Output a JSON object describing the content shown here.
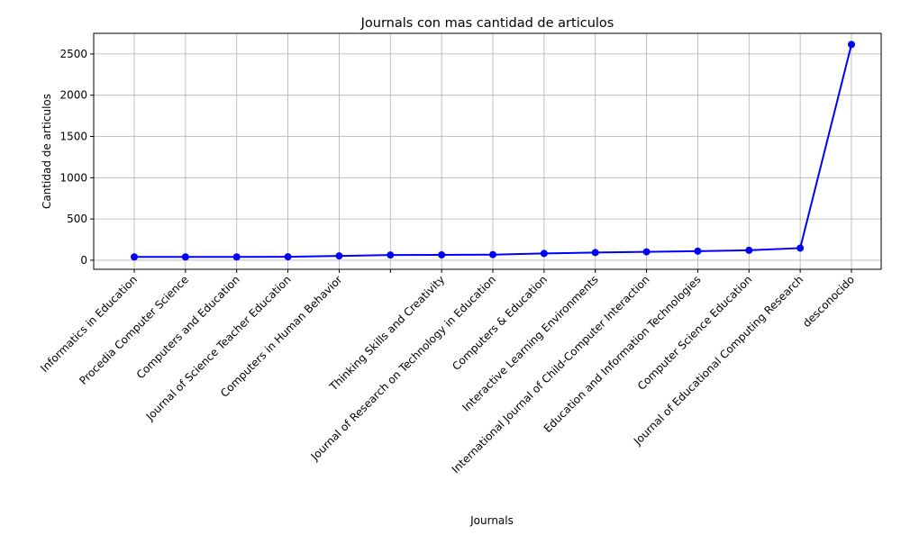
{
  "chart_data": {
    "type": "line",
    "title": "Journals con mas cantidad de articulos",
    "x_label": "Journals",
    "y_label": "Cantidad de articulos",
    "categories": [
      "Informatics in Education",
      "Procedia Computer Science",
      "Computers and Education",
      "Journal of Science Teacher Education",
      "Computers in Human Behavior",
      null,
      "Thinking Skills and Creativity",
      "Journal of Research on Technology in Education",
      "Computers & Education",
      "Interactive Learning Environments",
      "International Journal of Child-Computer Interaction",
      "Education and Information Technologies",
      "Computer Science Education",
      "Journal of Educational Computing Research",
      "desconocido"
    ],
    "series": [
      {
        "name": "Cantidad de articulos",
        "color": "#0000ff",
        "values": [
          40,
          40,
          40,
          42,
          52,
          63,
          65,
          68,
          82,
          93,
          102,
          110,
          120,
          147,
          2615
        ]
      }
    ],
    "ylim": [
      -110,
      2750
    ],
    "yticks": [
      0,
      500,
      1000,
      1500,
      2000,
      2500
    ],
    "grid": true
  }
}
